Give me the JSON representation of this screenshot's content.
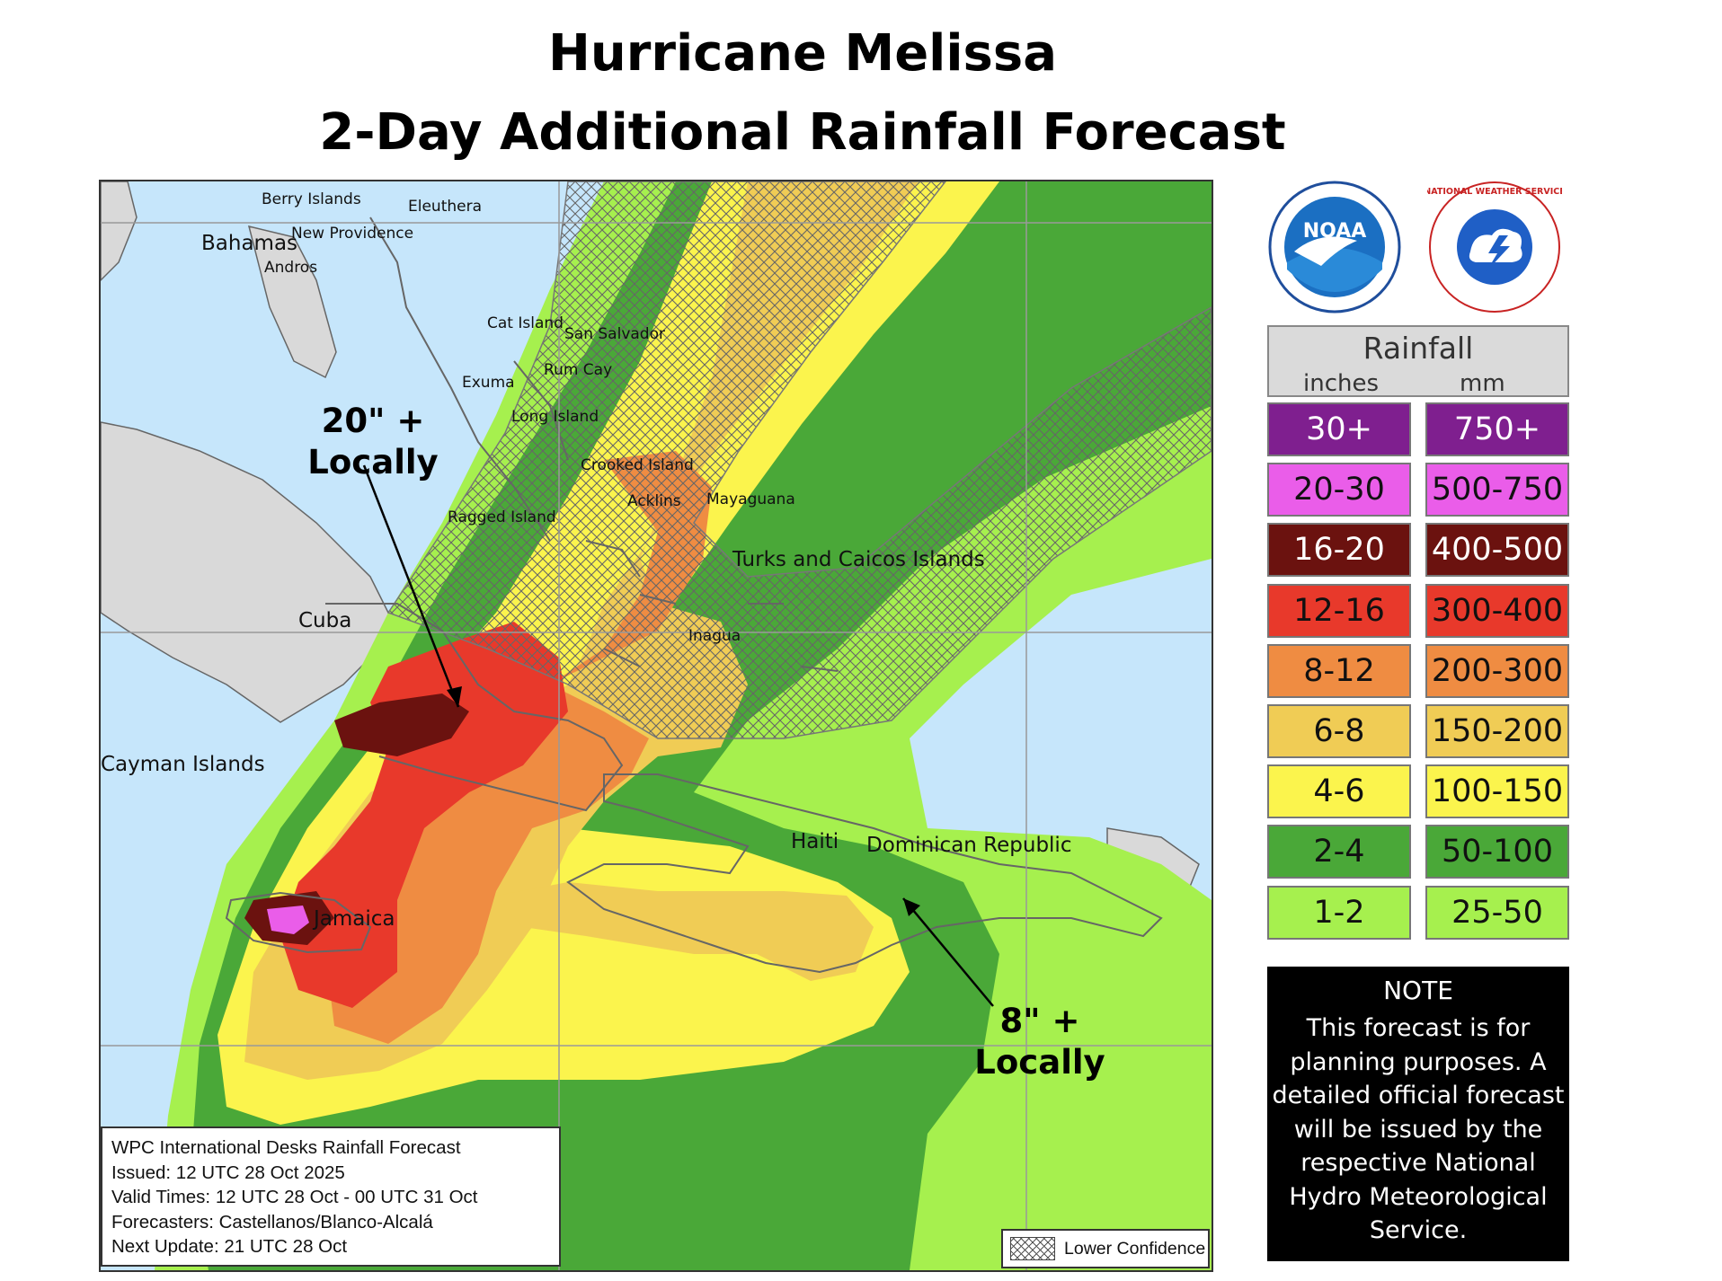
{
  "title": {
    "line1": "Hurricane Melissa",
    "line2": "2-Day Additional Rainfall Forecast"
  },
  "map": {
    "place_labels": [
      {
        "id": "berry-islands",
        "text": "Berry Islands"
      },
      {
        "id": "eleuthera",
        "text": "Eleuthera"
      },
      {
        "id": "new-providence",
        "text": "New Providence"
      },
      {
        "id": "bahamas",
        "text": "Bahamas"
      },
      {
        "id": "andros",
        "text": "Andros"
      },
      {
        "id": "cat-island",
        "text": "Cat Island"
      },
      {
        "id": "san-salvador",
        "text": "San Salvador"
      },
      {
        "id": "rum-cay",
        "text": "Rum Cay"
      },
      {
        "id": "exuma",
        "text": "Exuma"
      },
      {
        "id": "long-island",
        "text": "Long Island"
      },
      {
        "id": "crooked-island",
        "text": "Crooked Island"
      },
      {
        "id": "acklins",
        "text": "Acklins"
      },
      {
        "id": "mayaguana",
        "text": "Mayaguana"
      },
      {
        "id": "ragged-island",
        "text": "Ragged Island"
      },
      {
        "id": "turks-caicos",
        "text": "Turks and Caicos Islands"
      },
      {
        "id": "cuba",
        "text": "Cuba"
      },
      {
        "id": "inagua",
        "text": "Inagua"
      },
      {
        "id": "cayman-islands",
        "text": "Cayman Islands"
      },
      {
        "id": "haiti",
        "text": "Haiti"
      },
      {
        "id": "dominican-republic",
        "text": "Dominican Republic"
      },
      {
        "id": "jamaica",
        "text": "Jamaica"
      }
    ],
    "callouts": [
      {
        "id": "cuba-callout",
        "line1": "20\" +",
        "line2": "Locally"
      },
      {
        "id": "dr-callout",
        "line1": "8\" +",
        "line2": "Locally"
      }
    ],
    "info_box": [
      "WPC International Desks Rainfall Forecast",
      "Issued: 12 UTC 28 Oct 2025",
      "Valid Times: 12 UTC 28 Oct - 00 UTC 31 Oct",
      "Forecasters: Castellanos/Blanco-Alcalá",
      "Next Update: 21 UTC 28 Oct"
    ],
    "lower_confidence_label": "Lower Confidence"
  },
  "logos": [
    {
      "id": "noaa",
      "text": "NOAA"
    },
    {
      "id": "nws",
      "text": "NATIONAL WEATHER SERVICE"
    }
  ],
  "legend": {
    "title": "Rainfall",
    "col_inches": "inches",
    "col_mm": "mm",
    "rows": [
      {
        "inches": "30+",
        "mm": "750+",
        "color": "#7f1f8f",
        "text_color": "#ffffff"
      },
      {
        "inches": "20-30",
        "mm": "500-750",
        "color": "#ea5de9",
        "text_color": "#111111"
      },
      {
        "inches": "16-20",
        "mm": "400-500",
        "color": "#6b120f",
        "text_color": "#ffffff"
      },
      {
        "inches": "12-16",
        "mm": "300-400",
        "color": "#e8392b",
        "text_color": "#111111"
      },
      {
        "inches": "8-12",
        "mm": "200-300",
        "color": "#ef8c42",
        "text_color": "#111111"
      },
      {
        "inches": "6-8",
        "mm": "150-200",
        "color": "#f0cc55",
        "text_color": "#111111"
      },
      {
        "inches": "4-6",
        "mm": "100-150",
        "color": "#fbf44d",
        "text_color": "#111111"
      },
      {
        "inches": "2-4",
        "mm": "50-100",
        "color": "#4aa838",
        "text_color": "#111111"
      },
      {
        "inches": "1-2",
        "mm": "25-50",
        "color": "#a6f04e",
        "text_color": "#111111"
      }
    ]
  },
  "note": {
    "title": "NOTE",
    "lines": [
      "This forecast is for",
      "planning purposes. A",
      "detailed official forecast",
      "will be issued by the",
      "respective National",
      "Hydro Meteorological",
      "Service."
    ]
  }
}
